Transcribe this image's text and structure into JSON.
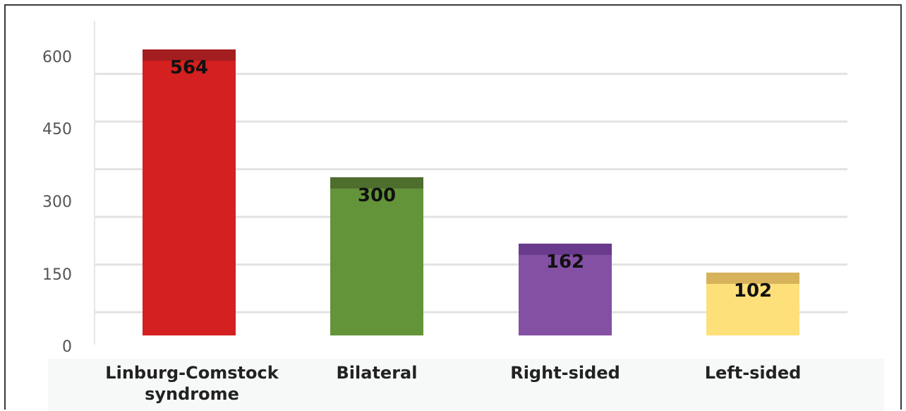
{
  "chart_data": {
    "type": "bar",
    "categories": [
      "Linburg-Comstock syndrome",
      "Bilateral",
      "Right-sided",
      "Left-sided"
    ],
    "category_lines": [
      [
        "Linburg-Comstock",
        "syndrome"
      ],
      [
        "Bilateral"
      ],
      [
        "Right-sided"
      ],
      [
        "Left-sided"
      ]
    ],
    "values": [
      564,
      300,
      162,
      102
    ],
    "data_labels": [
      "564",
      "300",
      "162",
      "102"
    ],
    "ylim": [
      0,
      600
    ],
    "yticks": [
      0,
      150,
      300,
      450,
      600
    ],
    "grid": true,
    "colors": [
      "#d42020",
      "#64943a",
      "#8450a4",
      "#fde07a"
    ],
    "cap_colors": [
      "#a41d1f",
      "#4e6e2e",
      "#6a3a8c",
      "#d6b25a"
    ]
  }
}
